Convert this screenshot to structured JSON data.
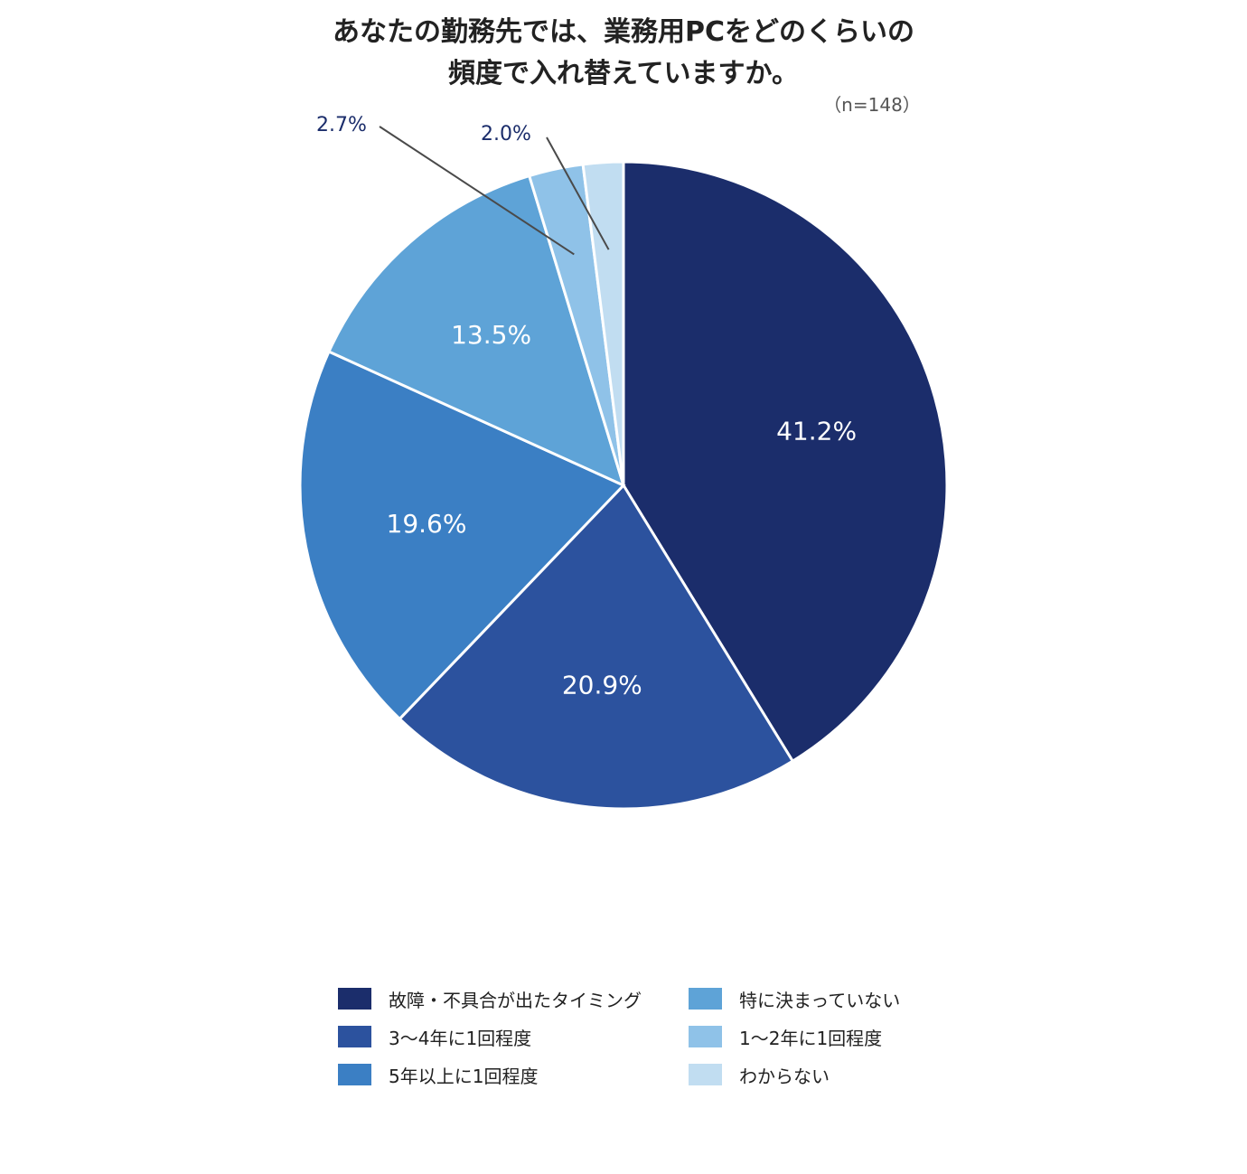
{
  "chart_data": {
    "type": "pie",
    "title_line1": "あなたの勤務先では、業務用PCをどのくらいの",
    "title_line2": "頻度で入れ替えていますか。",
    "sample_size": "（n=148）",
    "categories": [
      "故障・不具合が出たタイミング",
      "3〜4年に1回程度",
      "5年以上に1回程度",
      "特に決まっていない",
      "1〜2年に1回程度",
      "わからない"
    ],
    "values": [
      41.2,
      20.9,
      19.6,
      13.5,
      2.7,
      2.0
    ],
    "labels": [
      "41.2%",
      "20.9%",
      "19.6%",
      "13.5%",
      "2.7%",
      "2.0%"
    ],
    "colors": [
      "#1b2d6b",
      "#2c529e",
      "#3b7fc4",
      "#5ea3d7",
      "#8fc2e8",
      "#c1ddf1"
    ],
    "legend_order": [
      0,
      3,
      1,
      4,
      2,
      5
    ],
    "legend_position": "bottom",
    "start_angle": "12 o'clock",
    "direction": "clockwise"
  }
}
